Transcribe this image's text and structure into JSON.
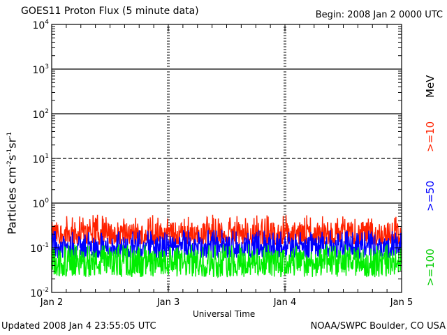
{
  "header": {
    "title": "GOES11 Proton Flux (5 minute data)",
    "begin": "Begin: 2008 Jan 2 0000 UTC"
  },
  "footer": {
    "updated": "Updated 2008 Jan  4 23:55:05 UTC",
    "credit": "NOAA/SWPC Boulder, CO USA"
  },
  "chart_data": {
    "type": "line",
    "ylabel_main": "Particles cm",
    "ylabel_exponents": [
      "-2",
      "-1",
      "-1"
    ],
    "ylabel_units": [
      "s",
      "sr"
    ],
    "xlabel": "Universal Time",
    "x_ticks": [
      "Jan 2",
      "Jan 3",
      "Jan 4",
      "Jan 5"
    ],
    "xlim_days": [
      0,
      3
    ],
    "y_scale": "log",
    "ylim": [
      0.01,
      10000
    ],
    "y_ticks": [
      {
        "base": "10",
        "exp": "-2"
      },
      {
        "base": "10",
        "exp": "-1"
      },
      {
        "base": "10",
        "exp": "0"
      },
      {
        "base": "10",
        "exp": "1"
      },
      {
        "base": "10",
        "exp": "2"
      },
      {
        "base": "10",
        "exp": "3"
      },
      {
        "base": "10",
        "exp": "4"
      }
    ],
    "reference_lines": [
      {
        "y": 1,
        "style": "solid"
      },
      {
        "y": 10,
        "style": "dashed"
      },
      {
        "y": 100,
        "style": "solid"
      },
      {
        "y": 1000,
        "style": "solid"
      }
    ],
    "unit_label": "MeV",
    "series": [
      {
        "name": ">=10",
        "color": "#ff2200",
        "typical": 0.2,
        "min": 0.12,
        "max": 0.55
      },
      {
        "name": ">=50",
        "color": "#0000ff",
        "typical": 0.1,
        "min": 0.06,
        "max": 0.25
      },
      {
        "name": ">=100",
        "color": "#00ee00",
        "typical": 0.045,
        "min": 0.022,
        "max": 0.12
      }
    ]
  }
}
